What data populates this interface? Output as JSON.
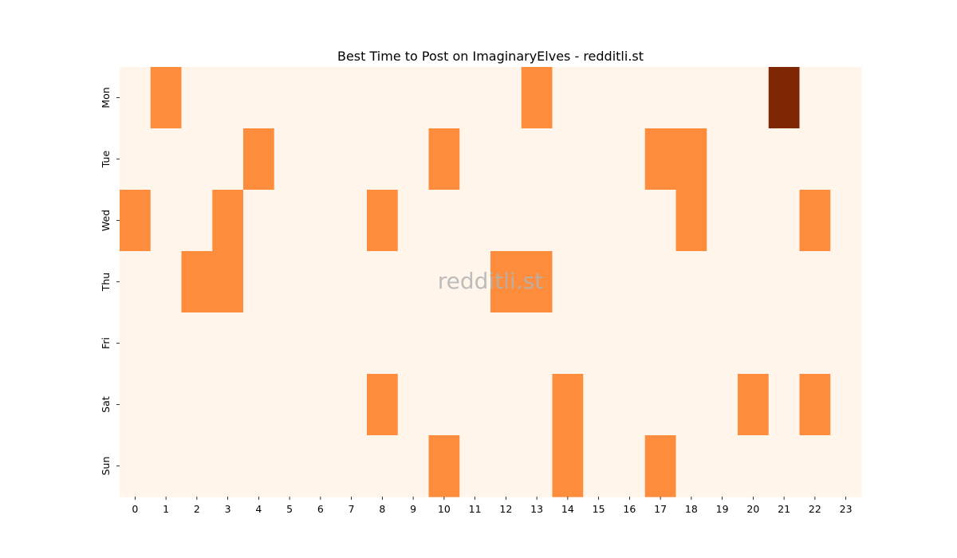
{
  "chart_data": {
    "type": "heatmap",
    "title": "Best Time to Post on ImaginaryElves - redditli.st",
    "watermark": "redditli.st",
    "x_labels": [
      "0",
      "1",
      "2",
      "3",
      "4",
      "5",
      "6",
      "7",
      "8",
      "9",
      "10",
      "11",
      "12",
      "13",
      "14",
      "15",
      "16",
      "17",
      "18",
      "19",
      "20",
      "21",
      "22",
      "23"
    ],
    "y_labels": [
      "Mon",
      "Tue",
      "Wed",
      "Thu",
      "Fri",
      "Sat",
      "Sun"
    ],
    "values": [
      [
        0,
        1,
        0,
        0,
        0,
        0,
        0,
        0,
        0,
        0,
        0,
        0,
        0,
        1,
        0,
        0,
        0,
        0,
        0,
        0,
        0,
        2,
        0,
        0
      ],
      [
        0,
        0,
        0,
        0,
        1,
        0,
        0,
        0,
        0,
        0,
        1,
        0,
        0,
        0,
        0,
        0,
        0,
        1,
        1,
        0,
        0,
        0,
        0,
        0
      ],
      [
        1,
        0,
        0,
        1,
        0,
        0,
        0,
        0,
        1,
        0,
        0,
        0,
        0,
        0,
        0,
        0,
        0,
        0,
        1,
        0,
        0,
        0,
        1,
        0
      ],
      [
        0,
        0,
        1,
        1,
        0,
        0,
        0,
        0,
        0,
        0,
        0,
        0,
        1,
        1,
        0,
        0,
        0,
        0,
        0,
        0,
        0,
        0,
        0,
        0
      ],
      [
        0,
        0,
        0,
        0,
        0,
        0,
        0,
        0,
        0,
        0,
        0,
        0,
        0,
        0,
        0,
        0,
        0,
        0,
        0,
        0,
        0,
        0,
        0,
        0
      ],
      [
        0,
        0,
        0,
        0,
        0,
        0,
        0,
        0,
        1,
        0,
        0,
        0,
        0,
        0,
        1,
        0,
        0,
        0,
        0,
        0,
        1,
        0,
        1,
        0
      ],
      [
        0,
        0,
        0,
        0,
        0,
        0,
        0,
        0,
        0,
        0,
        1,
        0,
        0,
        0,
        1,
        0,
        0,
        1,
        0,
        0,
        0,
        0,
        0,
        0
      ]
    ],
    "colormap": "Oranges",
    "colors": {
      "low": "#fff5eb",
      "mid": "#fd8d3c",
      "high": "#7f2704"
    }
  }
}
